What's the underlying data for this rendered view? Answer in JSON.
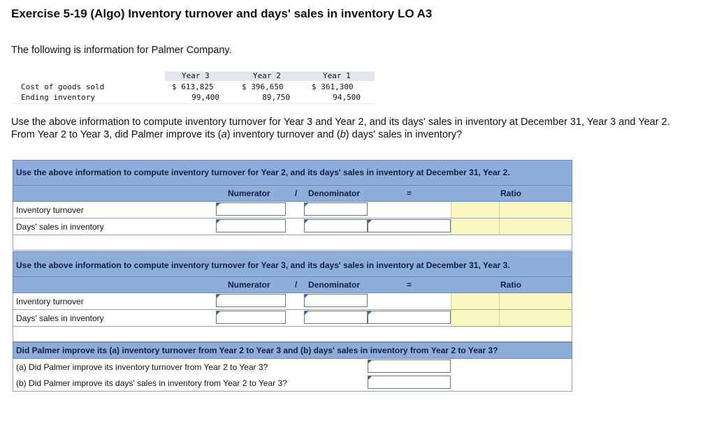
{
  "title": "Exercise 5-19 (Algo) Inventory turnover and days' sales in inventory LO A3",
  "intro": "The following is information for Palmer Company.",
  "info_table": {
    "headers": [
      "Year 3",
      "Year 2",
      "Year 1"
    ],
    "rows": [
      {
        "label": "Cost of goods sold",
        "values": [
          "$ 613,825",
          "$ 396,650",
          "$ 361,300"
        ]
      },
      {
        "label": "Ending inventory",
        "values": [
          "99,400",
          "89,750",
          "94,500"
        ]
      }
    ]
  },
  "instructions": "Use the above information to compute inventory turnover for Year 3 and Year 2, and its days' sales in inventory at December 31, Year 3 and Year 2. From Year 2 to Year 3, did Palmer improve its (a) inventory turnover and (b) days' sales in inventory?",
  "instructions_parts": {
    "pre_a": "Use the above information to compute inventory turnover for Year 3 and Year 2, and its days' sales in inventory at December 31, Year 3 and Year 2. From Year 2 to Year 3, did Palmer improve its (",
    "a": "a",
    "mid": ") inventory turnover and (",
    "b": "b",
    "post": ") days' sales in inventory?"
  },
  "section_year2": {
    "heading": "Use the above information to compute inventory turnover for Year 2, and its days' sales in inventory at December 31, Year 2.",
    "columns": {
      "numerator": "Numerator",
      "slash": "/",
      "denominator": "Denominator",
      "equals": "=",
      "ratio": "Ratio"
    },
    "rows": [
      {
        "label": "Inventory turnover",
        "numerator": "",
        "denominator": "",
        "ratio": ""
      },
      {
        "label": "Days' sales in inventory",
        "numerator": "",
        "denominator": "",
        "ratio": ""
      }
    ]
  },
  "section_year3": {
    "heading": "Use the above information to compute inventory turnover for Year 3, and its days' sales in inventory at December 31, Year 3.",
    "columns": {
      "numerator": "Numerator",
      "slash": "/",
      "denominator": "Denominator",
      "equals": "=",
      "ratio": "Ratio"
    },
    "rows": [
      {
        "label": "Inventory turnover",
        "numerator": "",
        "denominator": "",
        "ratio": ""
      },
      {
        "label": "Days' sales in inventory",
        "numerator": "",
        "denominator": "",
        "ratio": ""
      }
    ]
  },
  "section_improve": {
    "heading": "Did Palmer improve its (a) inventory turnover from Year 2 to Year 3 and (b) days' sales in inventory from Year 2 to Year 3?",
    "rows": [
      {
        "label": "(a) Did Palmer improve its inventory turnover from Year 2 to Year 3?",
        "answer": ""
      },
      {
        "label": "(b) Did Palmer improve its days' sales in inventory from Year 2 to Year 3?",
        "answer": ""
      }
    ]
  },
  "colors": {
    "header_blue": "#8eaddb",
    "ratio_yellow": "#fbf7c0",
    "dropdown_marker": "#2f63b7"
  }
}
